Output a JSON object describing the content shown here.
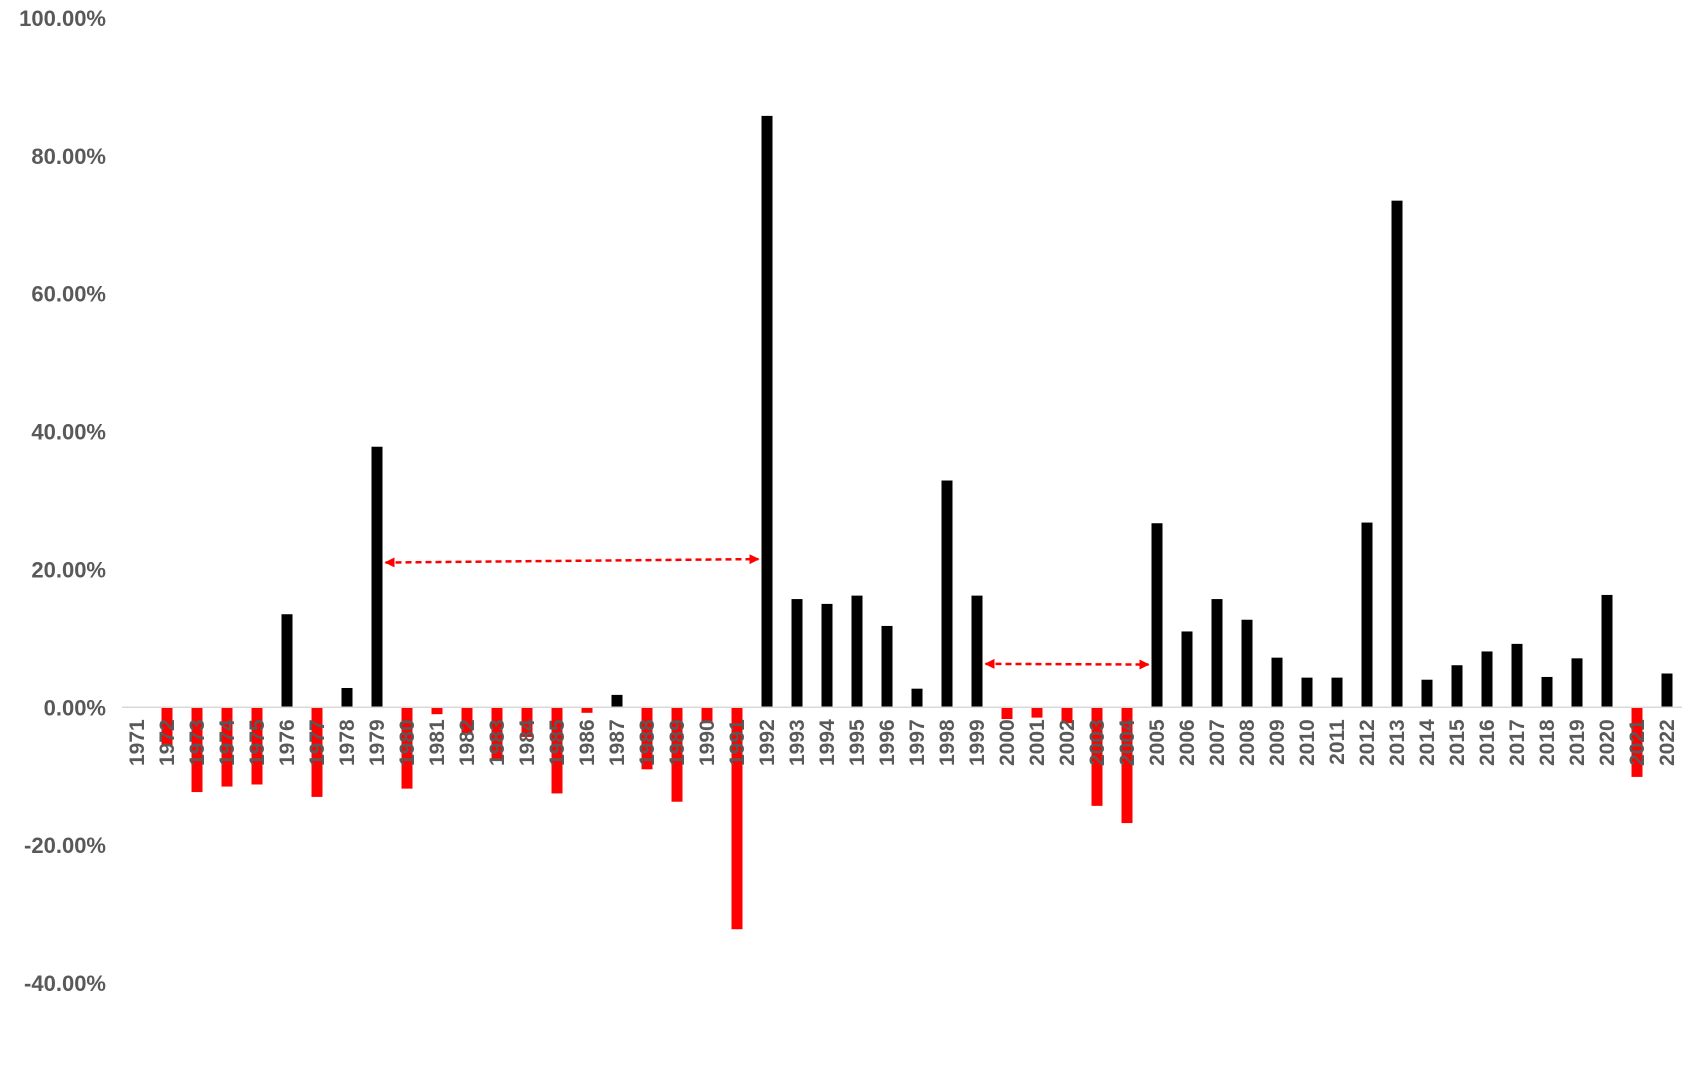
{
  "chart_data": {
    "type": "bar",
    "title": "",
    "xlabel": "",
    "ylabel": "",
    "ylim": [
      -0.4,
      1.0
    ],
    "y_tick_values": [
      -0.4,
      -0.2,
      0.0,
      0.2,
      0.4,
      0.6,
      0.8,
      1.0
    ],
    "y_tick_labels": [
      "-40.00%",
      "-20.00%",
      "0.00%",
      "20.00%",
      "40.00%",
      "60.00%",
      "80.00%",
      "100.00%"
    ],
    "grid": false,
    "legend": "none",
    "colors": {
      "positive": "#000000",
      "negative": "#ff0000",
      "arrow": "#ff0000"
    },
    "categories": [
      "1971",
      "1972",
      "1973",
      "1974",
      "1975",
      "1976",
      "1977",
      "1978",
      "1979",
      "1980",
      "1981",
      "1982",
      "1983",
      "1984",
      "1985",
      "1986",
      "1987",
      "1988",
      "1989",
      "1990",
      "1991",
      "1992",
      "1993",
      "1994",
      "1995",
      "1996",
      "1997",
      "1998",
      "1999",
      "2000",
      "2001",
      "2002",
      "2003",
      "2004",
      "2005",
      "2006",
      "2007",
      "2008",
      "2009",
      "2010",
      "2011",
      "2012",
      "2013",
      "2014",
      "2015",
      "2016",
      "2017",
      "2018",
      "2019",
      "2020",
      "2021",
      "2022"
    ],
    "values": [
      0.0,
      -0.055,
      -0.123,
      -0.115,
      -0.112,
      0.135,
      -0.13,
      0.028,
      0.378,
      -0.118,
      -0.01,
      -0.038,
      -0.077,
      -0.043,
      -0.125,
      -0.008,
      0.018,
      -0.09,
      -0.137,
      -0.023,
      -0.322,
      0.858,
      0.157,
      0.15,
      0.162,
      0.118,
      0.027,
      0.329,
      0.162,
      -0.017,
      -0.015,
      -0.023,
      -0.143,
      -0.168,
      0.267,
      0.11,
      0.157,
      0.127,
      0.072,
      0.043,
      0.043,
      0.268,
      0.735,
      0.04,
      0.061,
      0.081,
      0.092,
      0.044,
      0.071,
      0.163,
      -0.101,
      0.049
    ],
    "annotations": [
      {
        "type": "double-arrow",
        "from": "1979",
        "to": "1992",
        "y_start": 0.21,
        "y_end": 0.215
      },
      {
        "type": "double-arrow",
        "from": "1999",
        "to": "2005",
        "y_start": 0.063,
        "y_end": 0.062
      }
    ]
  }
}
